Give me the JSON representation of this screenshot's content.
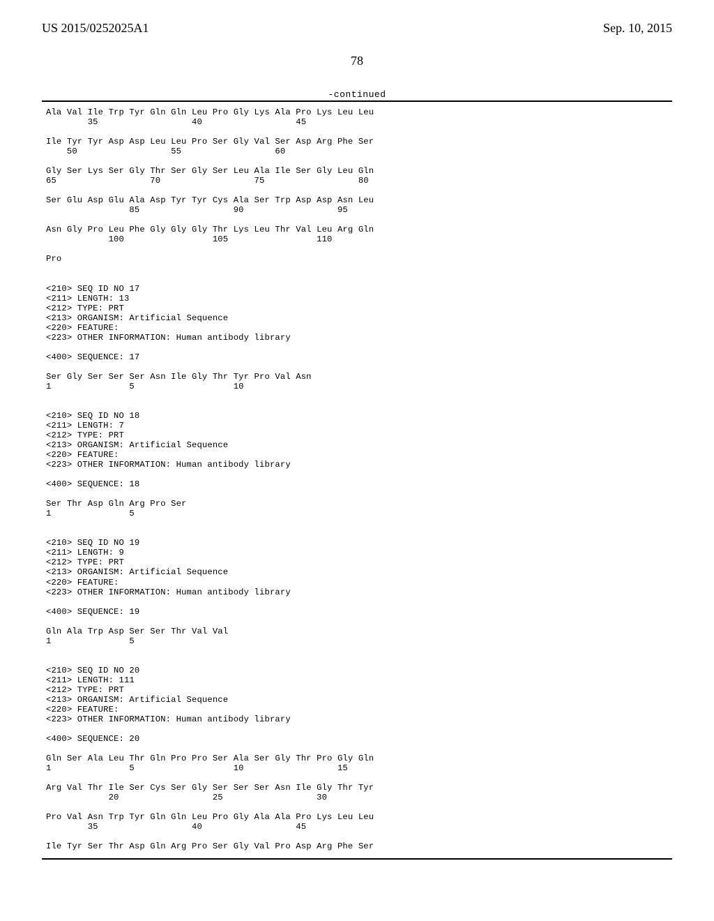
{
  "header": {
    "pub_number": "US 2015/0252025A1",
    "pub_date": "Sep. 10, 2015",
    "page_number": "78",
    "continued_label": "-continued"
  },
  "seq_lines": [
    "Ala Val Ile Trp Tyr Gln Gln Leu Pro Gly Lys Ala Pro Lys Leu Leu",
    "        35                  40                  45",
    "",
    "Ile Tyr Tyr Asp Asp Leu Leu Pro Ser Gly Val Ser Asp Arg Phe Ser",
    "    50                  55                  60",
    "",
    "Gly Ser Lys Ser Gly Thr Ser Gly Ser Leu Ala Ile Ser Gly Leu Gln",
    "65                  70                  75                  80",
    "",
    "Ser Glu Asp Glu Ala Asp Tyr Tyr Cys Ala Ser Trp Asp Asp Asn Leu",
    "                85                  90                  95",
    "",
    "Asn Gly Pro Leu Phe Gly Gly Gly Thr Lys Leu Thr Val Leu Arg Gln",
    "            100                 105                 110",
    "",
    "Pro",
    "",
    "",
    "<210> SEQ ID NO 17",
    "<211> LENGTH: 13",
    "<212> TYPE: PRT",
    "<213> ORGANISM: Artificial Sequence",
    "<220> FEATURE:",
    "<223> OTHER INFORMATION: Human antibody library",
    "",
    "<400> SEQUENCE: 17",
    "",
    "Ser Gly Ser Ser Ser Asn Ile Gly Thr Tyr Pro Val Asn",
    "1               5                   10",
    "",
    "",
    "<210> SEQ ID NO 18",
    "<211> LENGTH: 7",
    "<212> TYPE: PRT",
    "<213> ORGANISM: Artificial Sequence",
    "<220> FEATURE:",
    "<223> OTHER INFORMATION: Human antibody library",
    "",
    "<400> SEQUENCE: 18",
    "",
    "Ser Thr Asp Gln Arg Pro Ser",
    "1               5",
    "",
    "",
    "<210> SEQ ID NO 19",
    "<211> LENGTH: 9",
    "<212> TYPE: PRT",
    "<213> ORGANISM: Artificial Sequence",
    "<220> FEATURE:",
    "<223> OTHER INFORMATION: Human antibody library",
    "",
    "<400> SEQUENCE: 19",
    "",
    "Gln Ala Trp Asp Ser Ser Thr Val Val",
    "1               5",
    "",
    "",
    "<210> SEQ ID NO 20",
    "<211> LENGTH: 111",
    "<212> TYPE: PRT",
    "<213> ORGANISM: Artificial Sequence",
    "<220> FEATURE:",
    "<223> OTHER INFORMATION: Human antibody library",
    "",
    "<400> SEQUENCE: 20",
    "",
    "Gln Ser Ala Leu Thr Gln Pro Pro Ser Ala Ser Gly Thr Pro Gly Gln",
    "1               5                   10                  15",
    "",
    "Arg Val Thr Ile Ser Cys Ser Gly Ser Ser Ser Asn Ile Gly Thr Tyr",
    "            20                  25                  30",
    "",
    "Pro Val Asn Trp Tyr Gln Gln Leu Pro Gly Ala Ala Pro Lys Leu Leu",
    "        35                  40                  45",
    "",
    "Ile Tyr Ser Thr Asp Gln Arg Pro Ser Gly Val Pro Asp Arg Phe Ser"
  ]
}
